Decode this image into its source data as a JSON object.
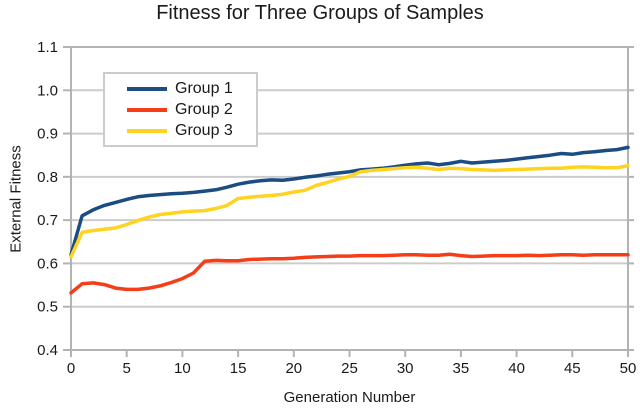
{
  "title": "Fitness for Three Groups of Samples",
  "colors": {
    "background": "#ffffff",
    "gridline": "#cccccc",
    "axis": "#b3b3b3",
    "text": "#1a1a1a",
    "series1": "#1b4d82",
    "series2": "#f43e19",
    "series3": "#ffd320"
  },
  "legend": {
    "entries": [
      "Group 1",
      "Group 2",
      "Group 3"
    ],
    "position": "upper-left-inside"
  },
  "chart_data": {
    "type": "line",
    "title": "Fitness for Three Groups of Samples",
    "xlabel": "Generation Number",
    "ylabel": "External Fitness",
    "xlim": [
      0,
      50
    ],
    "ylim": [
      0.4,
      1.1
    ],
    "x_ticks": [
      0,
      5,
      10,
      15,
      20,
      25,
      30,
      35,
      40,
      45,
      50
    ],
    "y_ticks": [
      "0.4",
      "0.5",
      "0.6",
      "0.7",
      "0.8",
      "0.9",
      "1.0",
      "1.1"
    ],
    "grid": "horizontal-only",
    "legend_position": "upper-left-inside",
    "x": [
      0,
      1,
      2,
      3,
      4,
      5,
      6,
      7,
      8,
      9,
      10,
      11,
      12,
      13,
      14,
      15,
      16,
      17,
      18,
      19,
      20,
      21,
      22,
      23,
      24,
      25,
      26,
      27,
      28,
      29,
      30,
      31,
      32,
      33,
      34,
      35,
      36,
      37,
      38,
      39,
      40,
      41,
      42,
      43,
      44,
      45,
      46,
      47,
      48,
      49,
      50
    ],
    "series": [
      {
        "name": "Group 1",
        "color": "#1b4d82",
        "values": [
          0.62,
          0.71,
          0.724,
          0.734,
          0.741,
          0.748,
          0.754,
          0.757,
          0.759,
          0.761,
          0.762,
          0.764,
          0.767,
          0.77,
          0.776,
          0.783,
          0.788,
          0.791,
          0.793,
          0.792,
          0.795,
          0.799,
          0.802,
          0.806,
          0.809,
          0.812,
          0.816,
          0.818,
          0.82,
          0.823,
          0.827,
          0.83,
          0.832,
          0.828,
          0.831,
          0.836,
          0.832,
          0.834,
          0.836,
          0.838,
          0.841,
          0.844,
          0.847,
          0.85,
          0.854,
          0.852,
          0.856,
          0.858,
          0.861,
          0.863,
          0.868
        ]
      },
      {
        "name": "Group 2",
        "color": "#f43e19",
        "values": [
          0.532,
          0.553,
          0.555,
          0.551,
          0.543,
          0.54,
          0.54,
          0.543,
          0.548,
          0.556,
          0.565,
          0.578,
          0.605,
          0.607,
          0.606,
          0.606,
          0.609,
          0.61,
          0.611,
          0.611,
          0.612,
          0.614,
          0.615,
          0.616,
          0.617,
          0.617,
          0.618,
          0.618,
          0.618,
          0.619,
          0.62,
          0.62,
          0.619,
          0.619,
          0.621,
          0.618,
          0.616,
          0.617,
          0.618,
          0.618,
          0.618,
          0.619,
          0.618,
          0.619,
          0.62,
          0.62,
          0.619,
          0.62,
          0.62,
          0.62,
          0.62
        ]
      },
      {
        "name": "Group 3",
        "color": "#ffd320",
        "values": [
          0.615,
          0.672,
          0.676,
          0.679,
          0.682,
          0.69,
          0.699,
          0.707,
          0.713,
          0.716,
          0.719,
          0.721,
          0.722,
          0.727,
          0.734,
          0.75,
          0.753,
          0.755,
          0.757,
          0.76,
          0.765,
          0.769,
          0.78,
          0.787,
          0.795,
          0.801,
          0.812,
          0.815,
          0.817,
          0.819,
          0.821,
          0.822,
          0.82,
          0.817,
          0.82,
          0.819,
          0.817,
          0.816,
          0.815,
          0.816,
          0.817,
          0.818,
          0.819,
          0.82,
          0.82,
          0.822,
          0.823,
          0.822,
          0.821,
          0.821,
          0.826
        ]
      }
    ]
  }
}
